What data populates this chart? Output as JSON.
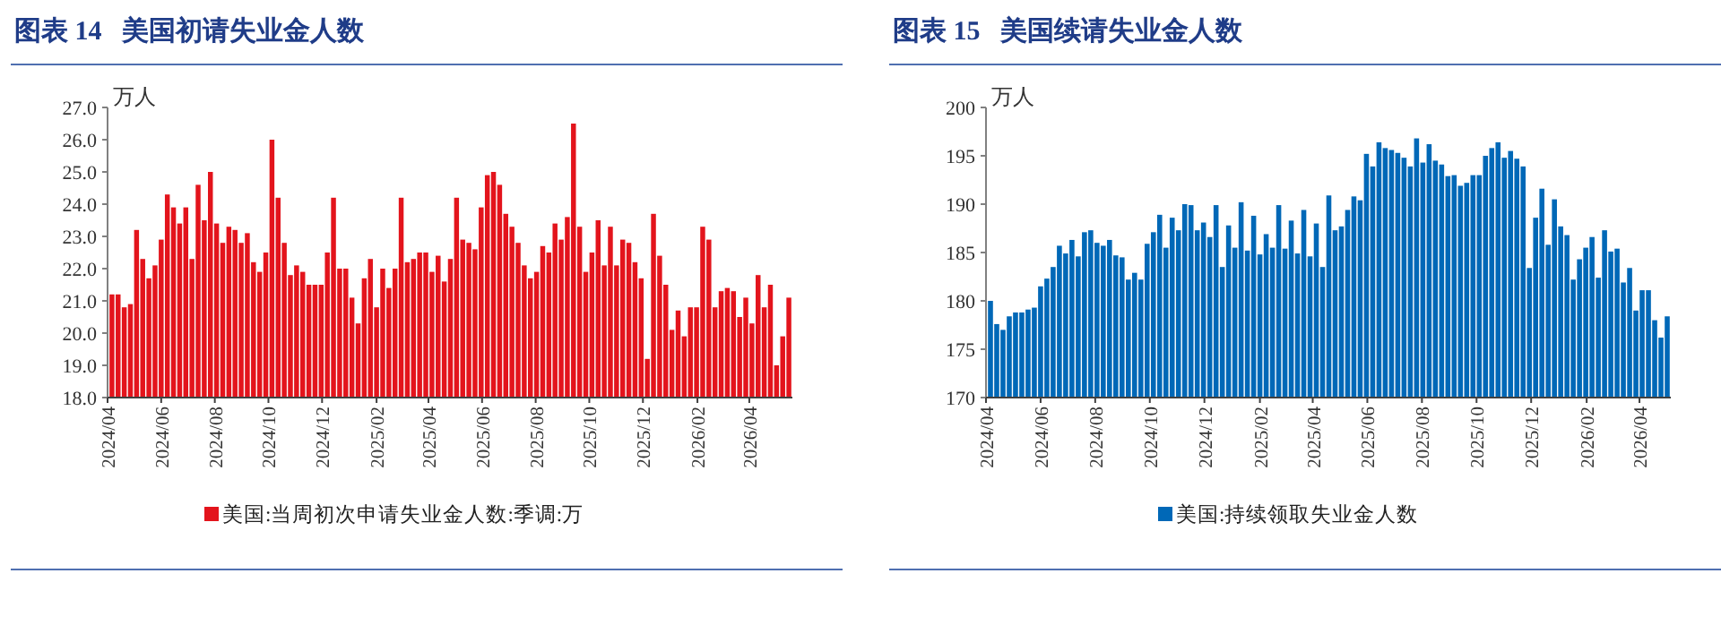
{
  "chart_data": [
    {
      "type": "bar",
      "title": "图表 14   美国初请失业金人数",
      "ylabel": "万人",
      "legend": "bottom",
      "x": [
        "2024-04-06",
        "2024-04-13",
        "2024-04-20",
        "2024-04-27",
        "2024-05-04",
        "2024-05-11",
        "2024-05-18",
        "2024-05-25",
        "2024-06-01",
        "2024-06-08",
        "2024-06-15",
        "2024-06-22",
        "2024-06-29",
        "2024-07-06",
        "2024-07-13",
        "2024-07-20",
        "2024-07-27",
        "2024-08-03",
        "2024-08-10",
        "2024-08-17",
        "2024-08-24",
        "2024-08-31",
        "2024-09-07",
        "2024-09-14",
        "2024-09-21",
        "2024-09-28",
        "2024-10-05",
        "2024-10-12",
        "2024-10-19",
        "2024-10-26",
        "2024-11-02",
        "2024-11-09",
        "2024-11-16",
        "2024-11-23",
        "2024-11-30",
        "2024-12-07",
        "2024-12-14",
        "2024-12-21",
        "2024-12-28",
        "2025-01-04",
        "2025-01-11",
        "2025-01-18",
        "2025-01-25",
        "2025-02-01",
        "2025-02-08",
        "2025-02-15",
        "2025-02-22",
        "2025-03-01",
        "2025-03-08",
        "2025-03-15",
        "2025-03-22",
        "2025-03-29",
        "2025-04-05",
        "2025-04-12",
        "2025-04-19",
        "2025-04-26",
        "2025-05-03",
        "2025-05-10",
        "2025-05-17",
        "2025-05-24",
        "2025-05-31",
        "2025-06-07",
        "2025-06-14",
        "2025-06-21",
        "2025-06-28",
        "2025-07-05",
        "2025-07-12",
        "2025-07-19",
        "2025-07-26",
        "2025-08-02",
        "2025-08-09",
        "2025-08-16",
        "2025-08-23",
        "2025-08-30",
        "2025-09-06",
        "2025-09-13",
        "2025-09-20",
        "2025-09-27",
        "2025-10-04",
        "2025-10-11",
        "2025-10-18",
        "2025-10-25",
        "2025-11-01",
        "2025-11-08",
        "2025-11-15",
        "2025-11-22",
        "2025-11-29",
        "2025-12-06",
        "2025-12-13",
        "2025-12-20",
        "2025-12-27",
        "2026-01-03",
        "2026-01-10",
        "2026-01-17",
        "2026-01-24",
        "2026-01-31",
        "2026-02-07",
        "2026-02-14",
        "2026-02-21",
        "2026-02-28",
        "2026-03-07",
        "2026-03-14",
        "2026-03-21",
        "2026-03-28",
        "2026-04-04",
        "2026-04-11",
        "2026-04-18",
        "2026-04-25",
        "2026-05-02",
        "2026-05-09",
        "2026-05-16"
      ],
      "series": [
        {
          "name": "美国:当周初次申请失业金人数:季调:万",
          "color": "#e3141c",
          "values": [
            21.2,
            21.2,
            20.8,
            20.9,
            23.2,
            22.3,
            21.7,
            22.1,
            22.9,
            24.3,
            23.9,
            23.4,
            23.9,
            22.3,
            24.6,
            23.5,
            25.0,
            23.4,
            22.8,
            23.3,
            23.2,
            22.8,
            23.1,
            22.2,
            21.9,
            22.5,
            26.0,
            24.2,
            22.8,
            21.8,
            22.1,
            21.9,
            21.5,
            21.5,
            21.5,
            22.5,
            24.2,
            22.0,
            22.0,
            21.1,
            20.3,
            21.7,
            22.3,
            20.8,
            22.0,
            21.4,
            22.0,
            24.2,
            22.2,
            22.3,
            22.5,
            22.5,
            21.9,
            22.4,
            21.6,
            22.3,
            24.2,
            22.9,
            22.8,
            22.6,
            23.9,
            24.9,
            25.0,
            24.6,
            23.7,
            23.3,
            22.8,
            22.1,
            21.7,
            21.9,
            22.7,
            22.5,
            23.4,
            22.9,
            23.6,
            26.5,
            23.3,
            21.9,
            22.5,
            23.5,
            22.1,
            23.3,
            22.1,
            22.9,
            22.8,
            22.2,
            21.7,
            19.2,
            23.7,
            22.4,
            21.5,
            20.1,
            20.7,
            19.9,
            20.8,
            20.8,
            23.3,
            22.9,
            20.8,
            21.3,
            21.4,
            21.3,
            20.5,
            21.1,
            20.3,
            21.8,
            20.8,
            21.5,
            19.0,
            19.9,
            21.1
          ]
        }
      ],
      "xlim": [
        "2024-04-01",
        "2026-05-20"
      ],
      "xticks": [
        {
          "value": "2024-04-01",
          "label": "2024/04"
        },
        {
          "value": "2024-06-01",
          "label": "2024/06"
        },
        {
          "value": "2024-08-01",
          "label": "2024/08"
        },
        {
          "value": "2024-10-01",
          "label": "2024/10"
        },
        {
          "value": "2024-12-01",
          "label": "2024/12"
        },
        {
          "value": "2025-02-01",
          "label": "2025/02"
        },
        {
          "value": "2025-04-01",
          "label": "2025/04"
        },
        {
          "value": "2025-06-01",
          "label": "2025/06"
        },
        {
          "value": "2025-08-01",
          "label": "2025/08"
        },
        {
          "value": "2025-10-01",
          "label": "2025/10"
        },
        {
          "value": "2025-12-01",
          "label": "2025/12"
        },
        {
          "value": "2026-02-01",
          "label": "2026/02"
        },
        {
          "value": "2026-04-01",
          "label": "2026/04"
        }
      ],
      "ylim": [
        18,
        27
      ],
      "yticks": [
        {
          "value": 18,
          "label": "18.0"
        },
        {
          "value": 19,
          "label": "19.0"
        },
        {
          "value": 20,
          "label": "20.0"
        },
        {
          "value": 21,
          "label": "21.0"
        },
        {
          "value": 22,
          "label": "22.0"
        },
        {
          "value": 23,
          "label": "23.0"
        },
        {
          "value": 24,
          "label": "24.0"
        },
        {
          "value": 25,
          "label": "25.0"
        },
        {
          "value": 26,
          "label": "26.0"
        },
        {
          "value": 27,
          "label": "27.0"
        }
      ]
    },
    {
      "type": "bar",
      "title": "图表 15   美国续请失业金人数",
      "ylabel": "万人",
      "legend": "bottom",
      "x": [
        "2024-04-06",
        "2024-04-13",
        "2024-04-20",
        "2024-04-27",
        "2024-05-04",
        "2024-05-11",
        "2024-05-18",
        "2024-05-25",
        "2024-06-01",
        "2024-06-08",
        "2024-06-15",
        "2024-06-22",
        "2024-06-29",
        "2024-07-06",
        "2024-07-13",
        "2024-07-20",
        "2024-07-27",
        "2024-08-03",
        "2024-08-10",
        "2024-08-17",
        "2024-08-24",
        "2024-08-31",
        "2024-09-07",
        "2024-09-14",
        "2024-09-21",
        "2024-09-28",
        "2024-10-05",
        "2024-10-12",
        "2024-10-19",
        "2024-10-26",
        "2024-11-02",
        "2024-11-09",
        "2024-11-16",
        "2024-11-23",
        "2024-11-30",
        "2024-12-07",
        "2024-12-14",
        "2024-12-21",
        "2024-12-28",
        "2025-01-04",
        "2025-01-11",
        "2025-01-18",
        "2025-01-25",
        "2025-02-01",
        "2025-02-08",
        "2025-02-15",
        "2025-02-22",
        "2025-03-01",
        "2025-03-08",
        "2025-03-15",
        "2025-03-22",
        "2025-03-29",
        "2025-04-05",
        "2025-04-12",
        "2025-04-19",
        "2025-04-26",
        "2025-05-03",
        "2025-05-10",
        "2025-05-17",
        "2025-05-24",
        "2025-05-31",
        "2025-06-07",
        "2025-06-14",
        "2025-06-21",
        "2025-06-28",
        "2025-07-05",
        "2025-07-12",
        "2025-07-19",
        "2025-07-26",
        "2025-08-02",
        "2025-08-09",
        "2025-08-16",
        "2025-08-23",
        "2025-08-30",
        "2025-09-06",
        "2025-09-13",
        "2025-09-20",
        "2025-09-27",
        "2025-10-04",
        "2025-10-11",
        "2025-10-18",
        "2025-10-25",
        "2025-11-01",
        "2025-11-08",
        "2025-11-15",
        "2025-11-22",
        "2025-11-29",
        "2025-12-06",
        "2025-12-13",
        "2025-12-20",
        "2025-12-27",
        "2026-01-03",
        "2026-01-10",
        "2026-01-17",
        "2026-01-24",
        "2026-01-31",
        "2026-02-07",
        "2026-02-14",
        "2026-02-21",
        "2026-02-28",
        "2026-03-07",
        "2026-03-14",
        "2026-03-21",
        "2026-03-28",
        "2026-04-04",
        "2026-04-11",
        "2026-04-18",
        "2026-04-25",
        "2026-05-02"
      ],
      "series": [
        {
          "name": "美国:持续领取失业金人数",
          "color": "#0068b7",
          "values": [
            180.0,
            177.6,
            177.0,
            178.4,
            178.8,
            178.8,
            179.1,
            179.3,
            181.5,
            182.3,
            183.5,
            185.7,
            184.9,
            186.3,
            184.6,
            187.1,
            187.3,
            186.0,
            185.7,
            186.3,
            184.7,
            184.5,
            182.2,
            182.9,
            182.2,
            185.9,
            187.1,
            188.9,
            185.5,
            188.6,
            187.3,
            190.0,
            189.9,
            187.3,
            188.1,
            186.6,
            189.9,
            183.5,
            187.8,
            185.5,
            190.2,
            185.2,
            188.8,
            184.8,
            186.9,
            185.5,
            189.9,
            185.4,
            188.3,
            184.9,
            189.4,
            184.6,
            188.0,
            183.5,
            190.9,
            187.3,
            187.7,
            189.4,
            190.8,
            190.4,
            195.2,
            193.9,
            196.4,
            195.8,
            195.6,
            195.3,
            194.8,
            193.9,
            196.8,
            194.3,
            196.2,
            194.5,
            194.1,
            192.9,
            193.0,
            191.9,
            192.2,
            193.0,
            193.0,
            195.0,
            195.8,
            196.4,
            194.8,
            195.5,
            194.7,
            193.9,
            183.4,
            188.6,
            191.6,
            185.8,
            190.5,
            187.7,
            186.8,
            182.2,
            184.3,
            185.5,
            186.6,
            182.4,
            187.3,
            185.1,
            185.4,
            181.9,
            183.4,
            179.0,
            181.1,
            181.1,
            178.0,
            176.2,
            178.4
          ]
        }
      ],
      "xlim": [
        "2024-04-01",
        "2026-05-06"
      ],
      "xticks": [
        {
          "value": "2024-04-01",
          "label": "2024/04"
        },
        {
          "value": "2024-06-01",
          "label": "2024/06"
        },
        {
          "value": "2024-08-01",
          "label": "2024/08"
        },
        {
          "value": "2024-10-01",
          "label": "2024/10"
        },
        {
          "value": "2024-12-01",
          "label": "2024/12"
        },
        {
          "value": "2025-02-01",
          "label": "2025/02"
        },
        {
          "value": "2025-04-01",
          "label": "2025/04"
        },
        {
          "value": "2025-06-01",
          "label": "2025/06"
        },
        {
          "value": "2025-08-01",
          "label": "2025/08"
        },
        {
          "value": "2025-10-01",
          "label": "2025/10"
        },
        {
          "value": "2025-12-01",
          "label": "2025/12"
        },
        {
          "value": "2026-02-01",
          "label": "2026/02"
        },
        {
          "value": "2026-04-01",
          "label": "2026/04"
        }
      ],
      "ylim": [
        170,
        200
      ],
      "yticks": [
        170,
        175,
        180,
        185,
        190,
        195,
        200
      ]
    }
  ]
}
